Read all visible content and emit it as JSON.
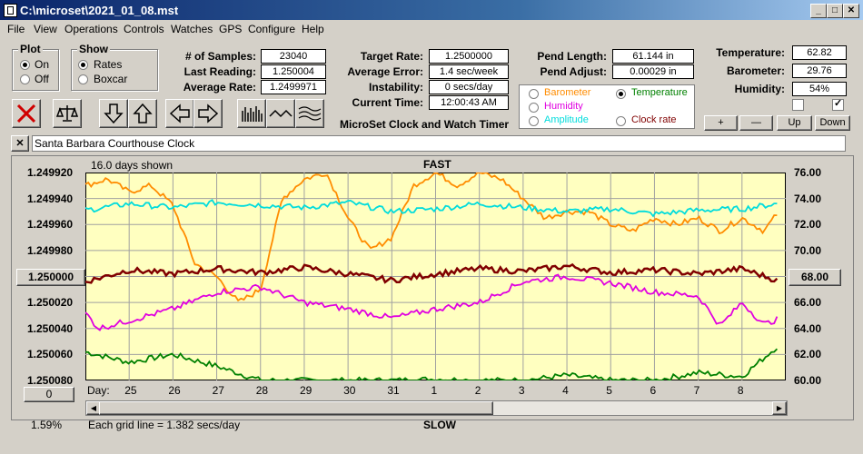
{
  "window": {
    "title": "C:\\microset\\2021_01_08.mst"
  },
  "menu": {
    "items": [
      "File",
      "View",
      "Operations",
      "Controls",
      "Watches",
      "GPS",
      "Configure",
      "Help"
    ]
  },
  "plot_group": {
    "title": "Plot",
    "on": "On",
    "off": "Off",
    "selected": "On"
  },
  "show_group": {
    "title": "Show",
    "rates": "Rates",
    "boxcar": "Boxcar",
    "selected": "Rates"
  },
  "stats": {
    "samples_label": "# of Samples:",
    "samples": "23040",
    "last_label": "Last Reading:",
    "last": "1.250004",
    "avgrate_label": "Average Rate:",
    "avgrate": "1.2499971",
    "target_label": "Target Rate:",
    "target": "1.2500000",
    "avgerr_label": "Average Error:",
    "avgerr": "1.4 sec/week",
    "instab_label": "Instability:",
    "instab": "0 secs/day",
    "time_label": "Current Time:",
    "time": "12:00:43 AM",
    "pendlen_label": "Pend Length:",
    "pendlen": "61.144 in",
    "pendadj_label": "Pend Adjust:",
    "pendadj": "0.00029 in",
    "temp_label": "Temperature:",
    "temp": "62.82",
    "baro_label": "Barometer:",
    "baro": "29.76",
    "hum_label": "Humidity:",
    "hum": "54%"
  },
  "app_title": "MicroSet Clock and Watch Timer",
  "second_axis": {
    "barometer": "Barometer",
    "humidity": "Humidity",
    "amplitude": "Amplitude",
    "temperature": "Temperature",
    "clockrate": "Clock rate",
    "selected": "Temperature",
    "colors": {
      "barometer": "#ff8c00",
      "humidity": "#e000e0",
      "amplitude": "#00dcdc",
      "temperature": "#008000",
      "clockrate": "#800000"
    }
  },
  "adjust_buttons": {
    "plus": "+",
    "minus": "—",
    "up": "Up",
    "down": "Down"
  },
  "watch": {
    "close": "✕",
    "name": "Santa Barbara Courthouse Clock"
  },
  "toolbar_icons": [
    "stop-icon",
    "balance-icon",
    "arrow-down-icon",
    "arrow-up-icon",
    "arrow-left-icon",
    "arrow-right-icon",
    "bars-icon",
    "wave-icon",
    "multiwave-icon"
  ],
  "chart_data": {
    "type": "line",
    "top_label": "FAST",
    "bottom_label": "SLOW",
    "days_shown": "16.0 days shown",
    "grid_note": "Each grid line = 1.382 secs/day",
    "left_center_button": "1.250000",
    "right_center_button": "68.00",
    "left_ticks": [
      "1.249920",
      "1.249940",
      "1.249960",
      "1.249980",
      "1.250000",
      "1.250020",
      "1.250040",
      "1.250060",
      "1.250080"
    ],
    "right_ticks": [
      "76.00",
      "74.00",
      "72.00",
      "70.00",
      "68.00",
      "66.00",
      "64.00",
      "62.00",
      "60.00"
    ],
    "ylim_left": [
      1.24992,
      1.25008
    ],
    "ylim_right": [
      60,
      76
    ],
    "x_label": "Day:",
    "x_ticks": [
      "25",
      "26",
      "27",
      "28",
      "29",
      "30",
      "31",
      "1",
      "2",
      "3",
      "4",
      "5",
      "6",
      "7",
      "8"
    ],
    "xlim": [
      0,
      16
    ],
    "scroll_value": "0",
    "zoom": "1.59%",
    "series": [
      {
        "color": "#008000",
        "axis": "right",
        "x": [
          0,
          1,
          2,
          3,
          4,
          5,
          6,
          7,
          8,
          9,
          10,
          11,
          12,
          13,
          14,
          15,
          15.8
        ],
        "values": [
          62.2,
          61.4,
          62.0,
          61.1,
          60.0,
          60.0,
          60.0,
          60.0,
          60.1,
          60.0,
          60.0,
          60.4,
          60.0,
          60.0,
          60.6,
          60.3,
          62.6
        ]
      },
      {
        "color": "#ff8c00",
        "axis": "right",
        "x": [
          0,
          0.5,
          1,
          1.5,
          2,
          2.5,
          3,
          3.5,
          4,
          4.5,
          5,
          5.5,
          6,
          6.5,
          7,
          7.5,
          8,
          8.5,
          9,
          9.5,
          10,
          10.5,
          11,
          11.5,
          12,
          12.5,
          13,
          13.5,
          14,
          14.5,
          15,
          15.5,
          15.8
        ],
        "values": [
          75.0,
          75.5,
          74.5,
          75.0,
          73.5,
          69.0,
          68.0,
          66.0,
          67.0,
          74.0,
          75.5,
          76.0,
          72.5,
          70.0,
          71.0,
          75.0,
          76.0,
          75.0,
          76.0,
          75.5,
          74.0,
          72.5,
          73.0,
          73.0,
          72.0,
          71.5,
          72.5,
          72.0,
          72.5,
          71.5,
          72.5,
          71.5,
          72.8
        ]
      },
      {
        "color": "#00dcdc",
        "axis": "right",
        "x": [
          0,
          1,
          2,
          3,
          4,
          5,
          6,
          7,
          8,
          9,
          10,
          11,
          12,
          13,
          14,
          15,
          15.8
        ],
        "values": [
          73.1,
          73.6,
          73.3,
          73.7,
          73.5,
          73.3,
          73.7,
          73.0,
          73.2,
          73.6,
          73.3,
          73.0,
          73.2,
          72.8,
          73.1,
          73.2,
          73.6
        ]
      },
      {
        "color": "#800000",
        "axis": "right",
        "x": [
          0,
          1,
          2,
          3,
          4,
          5,
          6,
          7,
          8,
          9,
          10,
          11,
          12,
          13,
          14,
          15,
          15.8
        ],
        "values": [
          67.6,
          68.5,
          68.2,
          68.6,
          68.3,
          68.7,
          68.2,
          67.7,
          68.2,
          68.6,
          68.4,
          68.8,
          68.3,
          68.5,
          68.2,
          68.6,
          67.7
        ]
      },
      {
        "color": "#e000e0",
        "axis": "right",
        "x": [
          0,
          0.3,
          1,
          2,
          3,
          4,
          5,
          6,
          7,
          8,
          9,
          10,
          11,
          12,
          13,
          14,
          14.5,
          15,
          15.5,
          15.8
        ],
        "values": [
          65.2,
          64.0,
          64.6,
          65.5,
          66.8,
          67.2,
          66.0,
          65.5,
          64.8,
          65.5,
          66.0,
          67.6,
          68.0,
          67.5,
          66.8,
          66.5,
          64.2,
          66.0,
          64.3,
          64.7
        ]
      }
    ]
  }
}
